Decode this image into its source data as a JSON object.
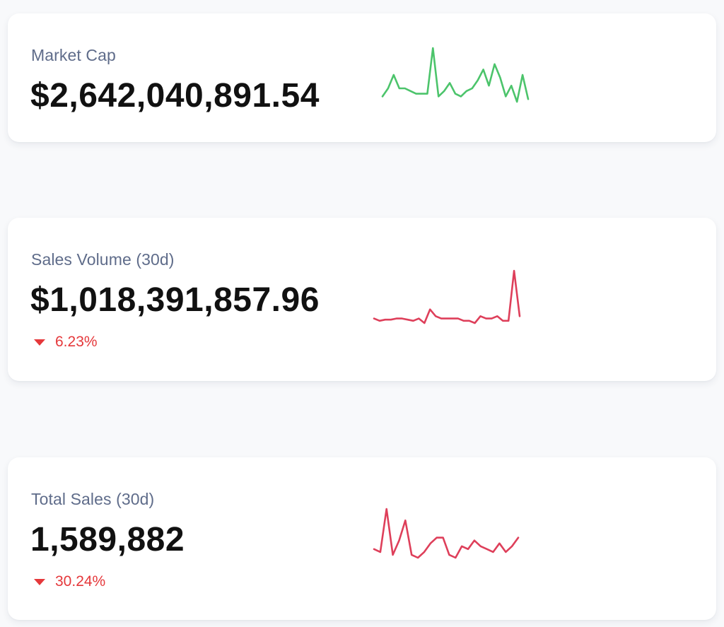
{
  "colors": {
    "positive": "#4cc46b",
    "negative": "#de3f5a",
    "label": "#5f6c8a",
    "value": "#111111",
    "change_down": "#e5383b"
  },
  "stats": {
    "market_cap": {
      "label": "Market Cap",
      "value": "$2,642,040,891.54",
      "trend": "positive",
      "sparkline": [
        22,
        25,
        30,
        25,
        25,
        24,
        23,
        23,
        23,
        40,
        22,
        24,
        27,
        23,
        22,
        24,
        25,
        28,
        32,
        26,
        34,
        29,
        22,
        26,
        20,
        30,
        21
      ]
    },
    "sales_volume": {
      "label": "Sales Volume (30d)",
      "value": "$1,018,391,857.96",
      "change": "6.23%",
      "change_direction": "down",
      "trend": "negative",
      "sparkline": [
        19,
        18,
        18.5,
        18.5,
        19,
        19,
        18.5,
        18,
        19,
        17,
        23,
        20,
        19,
        19,
        19,
        19,
        18,
        18,
        17,
        20,
        19,
        19,
        20,
        18,
        18,
        40,
        20
      ]
    },
    "total_sales": {
      "label": "Total Sales (30d)",
      "value": "1,589,882",
      "change": "30.24%",
      "change_direction": "down",
      "trend": "negative",
      "sparkline": [
        22,
        21,
        36,
        20,
        25,
        32,
        20,
        19,
        21,
        24,
        26,
        26,
        20,
        19,
        23,
        22,
        25,
        23,
        22,
        21,
        24,
        21,
        23,
        26
      ]
    }
  }
}
